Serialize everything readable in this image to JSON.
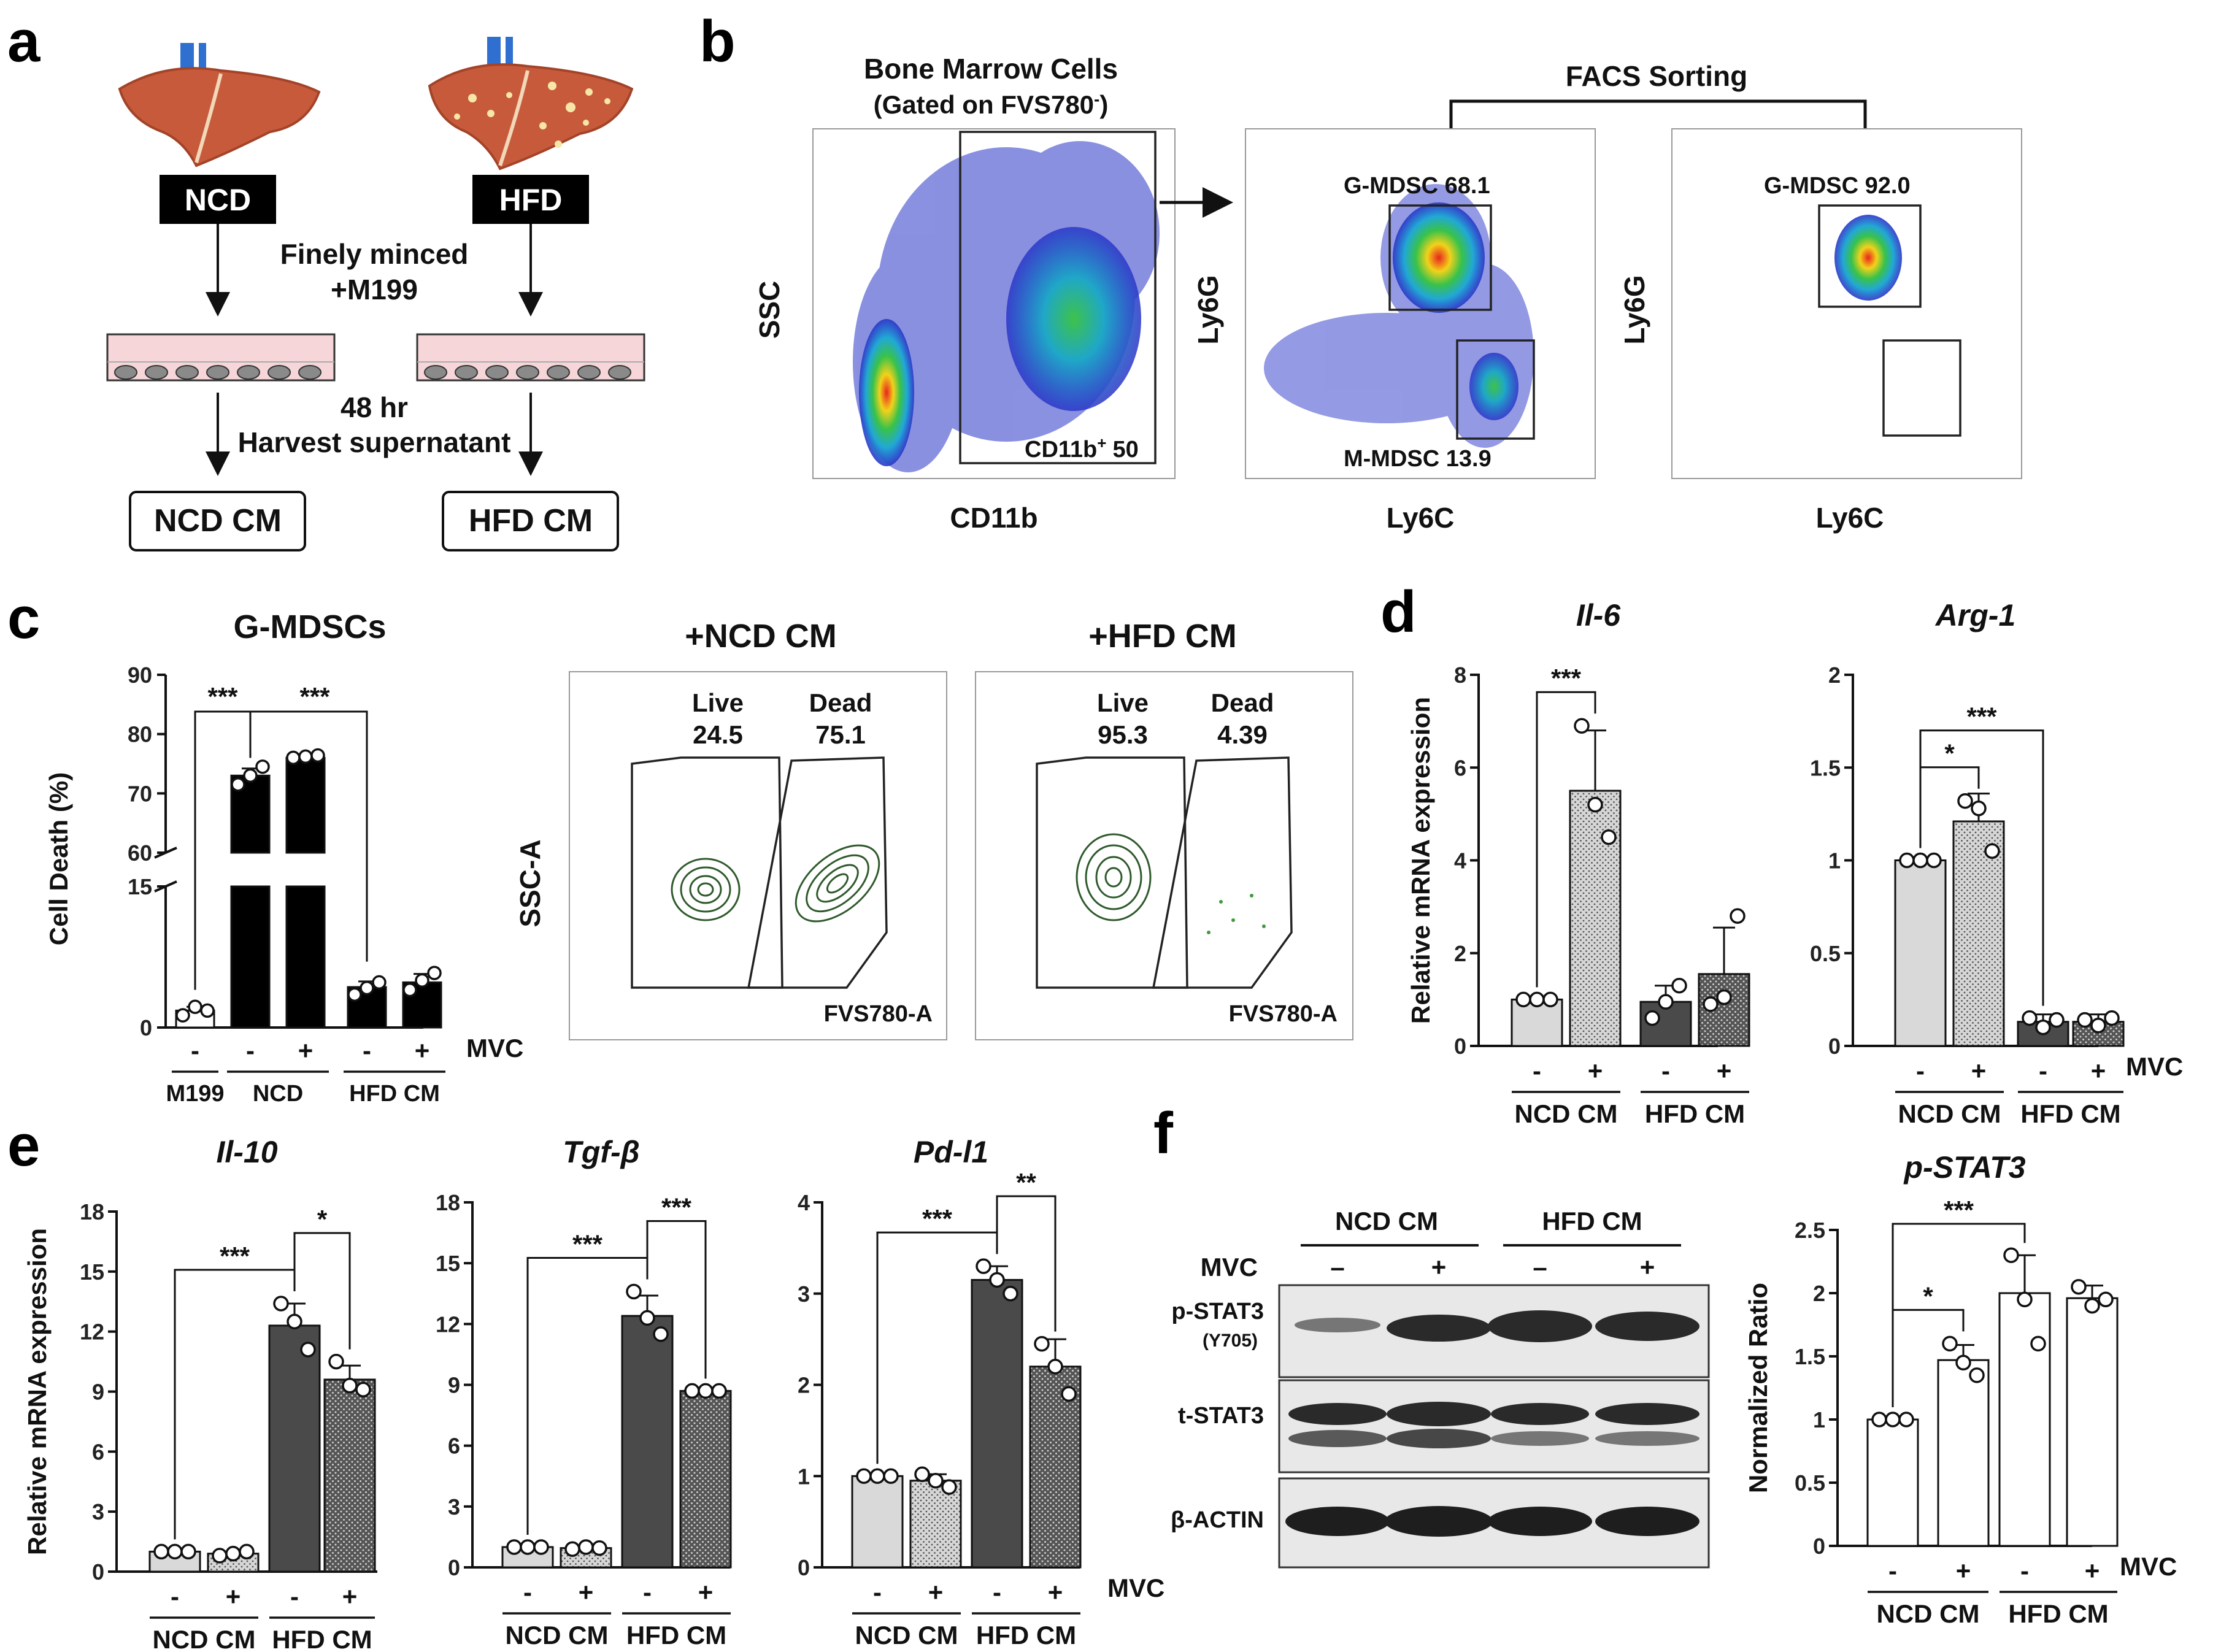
{
  "panel_labels": {
    "a": "a",
    "b": "b",
    "c": "c",
    "d": "d",
    "e": "e",
    "f": "f"
  },
  "panel_a": {
    "ncd": "NCD",
    "hfd": "HFD",
    "step1_line1": "Finely minced",
    "step1_line2": "+M199",
    "step2_line1": "48 hr",
    "step2_line2": "Harvest supernatant",
    "ncd_cm": "NCD CM",
    "hfd_cm": "HFD CM",
    "colors": {
      "liver": "#c85a3c",
      "liver_dark": "#a34328",
      "vessel": "#2f6fd0",
      "dish": "#f6d6d8",
      "cells": "#8a8a8a"
    }
  },
  "panel_b": {
    "title_line1": "Bone Marrow Cells",
    "title_line2": "(Gated on FVS780",
    "title_sup": "-",
    "title_end": ")",
    "sorting": "FACS Sorting",
    "plot1": {
      "ylabel": "SSC",
      "xlabel": "CD11b",
      "gate": "CD11b",
      "gate_sup": "+",
      "gate_value": "50"
    },
    "plot2": {
      "ylabel": "Ly6G",
      "xlabel": "Ly6C",
      "gate_g": "G-MDSC  68.1",
      "gate_m": "M-MDSC  13.9"
    },
    "plot3": {
      "ylabel": "Ly6G",
      "xlabel": "Ly6C",
      "gate_g": "G-MDSC  92.0"
    }
  },
  "panel_c_flow": {
    "ylabel": "SSC-A",
    "plot1": {
      "title": "+NCD CM",
      "live": "Live",
      "dead": "Dead",
      "live_value": "24.5",
      "dead_value": "75.1",
      "xlabel": "FVS780-A"
    },
    "plot2": {
      "title": "+HFD CM",
      "live": "Live",
      "dead": "Dead",
      "live_value": "95.3",
      "dead_value": "4.39",
      "xlabel": "FVS780-A"
    },
    "contour_color": "#2f5a2c",
    "dot_color": "#3e9a3a"
  },
  "shared": {
    "minus": "-",
    "plus": "+",
    "mvc": "MVC",
    "ncd_cm": "NCD CM",
    "hfd_cm": "HFD CM",
    "m199": "M199",
    "ncd": "NCD",
    "hfd_cm_label": "HFD CM",
    "dash": "–"
  },
  "chart_data": [
    {
      "id": "c",
      "type": "bar",
      "title": "G-MDSCs",
      "ylabel": "Cell Death (%)",
      "y_break": [
        15,
        60
      ],
      "yticks_lower": [
        0,
        15
      ],
      "yticks_upper": [
        60,
        70,
        80,
        90
      ],
      "categories": [
        "M199 -",
        "NCD -",
        "NCD +",
        "HFD CM -",
        "HFD CM +"
      ],
      "values": [
        1.8,
        73,
        76,
        4.3,
        4.8
      ],
      "points": [
        [
          1.3,
          2.2,
          1.8
        ],
        [
          71.5,
          73,
          74.5
        ],
        [
          76,
          76.2,
          76.4
        ],
        [
          3.5,
          4.2,
          4.8
        ],
        [
          4,
          5,
          5.8
        ]
      ],
      "errors": [
        0.4,
        1.2,
        0.2,
        0.6,
        0.9
      ],
      "colors": [
        "#ffffff",
        "#000000",
        "#000000",
        "#000000",
        "#000000"
      ],
      "significance": [
        {
          "from": 0,
          "to": 1,
          "label": "***"
        },
        {
          "from": 1,
          "to": 3,
          "label": "***"
        }
      ],
      "groups": [
        "M199",
        "NCD",
        "HFD CM"
      ]
    },
    {
      "id": "d1",
      "type": "bar",
      "title": "Il-6",
      "ylabel": "Relative mRNA expression",
      "ylim": [
        0,
        8
      ],
      "yticks": [
        0,
        2,
        4,
        6,
        8
      ],
      "categories": [
        "NCD CM -",
        "NCD CM +",
        "HFD CM -",
        "HFD CM +"
      ],
      "values": [
        1.0,
        5.5,
        0.95,
        1.55
      ],
      "points": [
        [
          1,
          1,
          1
        ],
        [
          6.9,
          5.2,
          4.5
        ],
        [
          0.6,
          0.95,
          1.3
        ],
        [
          0.9,
          1.05,
          2.8
        ]
      ],
      "errors": [
        0.03,
        1.3,
        0.35,
        1.0
      ],
      "significance": [
        {
          "from": 0,
          "to": 1,
          "label": "***"
        }
      ]
    },
    {
      "id": "d2",
      "type": "bar",
      "title": "Arg-1",
      "ylim": [
        0,
        2.0
      ],
      "yticks": [
        0.0,
        0.5,
        1.0,
        1.5,
        2.0
      ],
      "categories": [
        "NCD CM -",
        "NCD CM +",
        "HFD CM -",
        "HFD CM +"
      ],
      "values": [
        1.0,
        1.21,
        0.13,
        0.13
      ],
      "points": [
        [
          1,
          1,
          1
        ],
        [
          1.32,
          1.28,
          1.05
        ],
        [
          0.15,
          0.1,
          0.14
        ],
        [
          0.14,
          0.11,
          0.15
        ]
      ],
      "errors": [
        0.01,
        0.15,
        0.04,
        0.04
      ],
      "significance": [
        {
          "from": 0,
          "to": 1,
          "label": "*"
        },
        {
          "from": 0,
          "to": 2,
          "label": "***"
        }
      ]
    },
    {
      "id": "e1",
      "type": "bar",
      "title": "Il-10",
      "ylabel": "Relative mRNA expression",
      "ylim": [
        0,
        18
      ],
      "yticks": [
        0,
        3,
        6,
        9,
        12,
        15,
        18
      ],
      "categories": [
        "NCD CM -",
        "NCD CM +",
        "HFD CM -",
        "HFD CM +"
      ],
      "values": [
        1.0,
        0.9,
        12.3,
        9.6
      ],
      "points": [
        [
          1,
          1,
          1
        ],
        [
          0.8,
          0.9,
          1.0
        ],
        [
          13.4,
          12.5,
          11.1
        ],
        [
          10.5,
          9.3,
          9.1
        ]
      ],
      "errors": [
        0.03,
        0.1,
        1.1,
        0.7
      ],
      "significance": [
        {
          "from": 0,
          "to": 2,
          "label": "***"
        },
        {
          "from": 2,
          "to": 3,
          "label": "*"
        }
      ]
    },
    {
      "id": "e2",
      "type": "bar",
      "title": "Tgf-β",
      "ylim": [
        0,
        18
      ],
      "yticks": [
        0,
        3,
        6,
        9,
        12,
        15,
        18
      ],
      "categories": [
        "NCD CM -",
        "NCD CM +",
        "HFD CM -",
        "HFD CM +"
      ],
      "values": [
        1.0,
        0.95,
        12.4,
        8.7
      ],
      "points": [
        [
          1,
          1,
          1
        ],
        [
          0.9,
          1.0,
          0.95
        ],
        [
          13.6,
          12.3,
          11.5
        ],
        [
          8.7,
          8.7,
          8.7
        ]
      ],
      "errors": [
        0.03,
        0.05,
        1.0,
        0.05
      ],
      "significance": [
        {
          "from": 0,
          "to": 2,
          "label": "***"
        },
        {
          "from": 2,
          "to": 3,
          "label": "***"
        }
      ]
    },
    {
      "id": "e3",
      "type": "bar",
      "title": "Pd-l1",
      "ylim": [
        0,
        4
      ],
      "yticks": [
        0,
        1,
        2,
        3,
        4
      ],
      "categories": [
        "NCD CM -",
        "NCD CM +",
        "HFD CM -",
        "HFD CM +"
      ],
      "values": [
        1.0,
        0.95,
        3.15,
        2.2
      ],
      "points": [
        [
          1,
          1,
          1
        ],
        [
          1.02,
          0.95,
          0.88
        ],
        [
          3.3,
          3.15,
          3.0
        ],
        [
          2.45,
          2.2,
          1.9
        ]
      ],
      "errors": [
        0.02,
        0.07,
        0.15,
        0.3
      ],
      "significance": [
        {
          "from": 0,
          "to": 2,
          "label": "***"
        },
        {
          "from": 2,
          "to": 3,
          "label": "**"
        }
      ]
    },
    {
      "id": "f",
      "type": "bar",
      "title": "p-STAT3",
      "ylabel": "Normalized Ratio",
      "ylim": [
        0,
        2.5
      ],
      "yticks": [
        0.0,
        0.5,
        1.0,
        1.5,
        2.0,
        2.5
      ],
      "categories": [
        "NCD CM -",
        "NCD CM +",
        "HFD CM -",
        "HFD CM +"
      ],
      "values": [
        1.0,
        1.47,
        2.0,
        1.96
      ],
      "points": [
        [
          1,
          1,
          1
        ],
        [
          1.6,
          1.45,
          1.35
        ],
        [
          2.3,
          1.95,
          1.6
        ],
        [
          2.05,
          1.9,
          1.95
        ]
      ],
      "errors": [
        0.01,
        0.12,
        0.3,
        0.1
      ],
      "significance": [
        {
          "from": 0,
          "to": 1,
          "label": "*"
        },
        {
          "from": 0,
          "to": 2,
          "label": "***"
        }
      ]
    }
  ],
  "panel_f_blot": {
    "ncd_cm": "NCD CM",
    "hfd_cm": "HFD CM",
    "mvc": "MVC",
    "lanes": [
      "–",
      "+",
      "–",
      "+"
    ],
    "rows": [
      {
        "label": "p-STAT3",
        "sub": "(Y705)"
      },
      {
        "label": "t-STAT3",
        "sub": ""
      },
      {
        "label": "β-ACTIN",
        "sub": ""
      }
    ]
  }
}
